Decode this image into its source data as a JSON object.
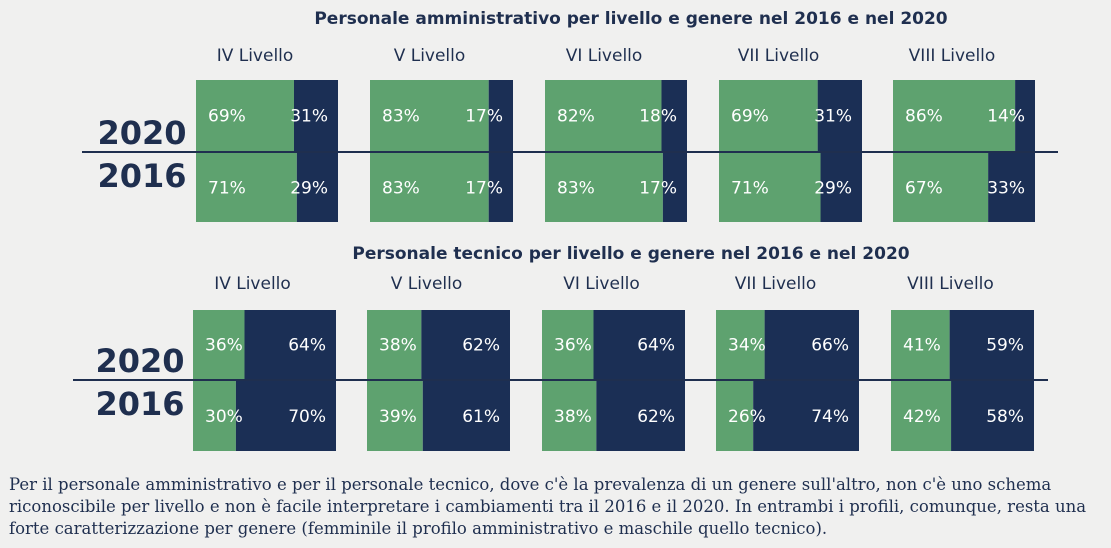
{
  "colors": {
    "female": "#5ea26f",
    "male": "#1b2f55",
    "text": "#1f2f4f"
  },
  "chart_data": [
    {
      "type": "bar",
      "stacked": true,
      "title": "Personale amministrativo per livello e genere nel 2016 e nel 2020",
      "categories": [
        "IV Livello",
        "V Livello",
        "VI Livello",
        "VII Livello",
        "VIII Livello"
      ],
      "years": [
        "2020",
        "2016"
      ],
      "series": [
        {
          "values": {
            "2020": [
              69,
              83,
              82,
              69,
              86
            ],
            "2016": [
              71,
              83,
              83,
              71,
              67
            ]
          },
          "color": "#5ea26f"
        },
        {
          "values": {
            "2020": [
              31,
              17,
              18,
              31,
              14
            ],
            "2016": [
              29,
              17,
              17,
              29,
              33
            ]
          },
          "color": "#1b2f55"
        }
      ],
      "unit": "%"
    },
    {
      "type": "bar",
      "stacked": true,
      "title": "Personale tecnico per livello e genere nel 2016 e nel 2020",
      "categories": [
        "IV Livello",
        "V Livello",
        "VI Livello",
        "VII Livello",
        "VIII Livello"
      ],
      "years": [
        "2020",
        "2016"
      ],
      "series": [
        {
          "values": {
            "2020": [
              36,
              38,
              36,
              34,
              41
            ],
            "2016": [
              30,
              39,
              38,
              26,
              42
            ]
          },
          "color": "#5ea26f"
        },
        {
          "values": {
            "2020": [
              64,
              62,
              64,
              66,
              59
            ],
            "2016": [
              70,
              61,
              62,
              74,
              58
            ]
          },
          "color": "#1b2f55"
        }
      ],
      "unit": "%"
    }
  ],
  "footnote": "Per il personale amministrativo e per il personale tecnico, dove c'è la prevalenza di un genere sull'altro, non c'è uno schema riconoscibile per livello e non è facile interpretare i cambiamenti tra il 2016 e il 2020. In entrambi i profili, comunque, resta una forte caratterizzazione per genere (femminile il profilo amministrativo e maschile quello tecnico)."
}
